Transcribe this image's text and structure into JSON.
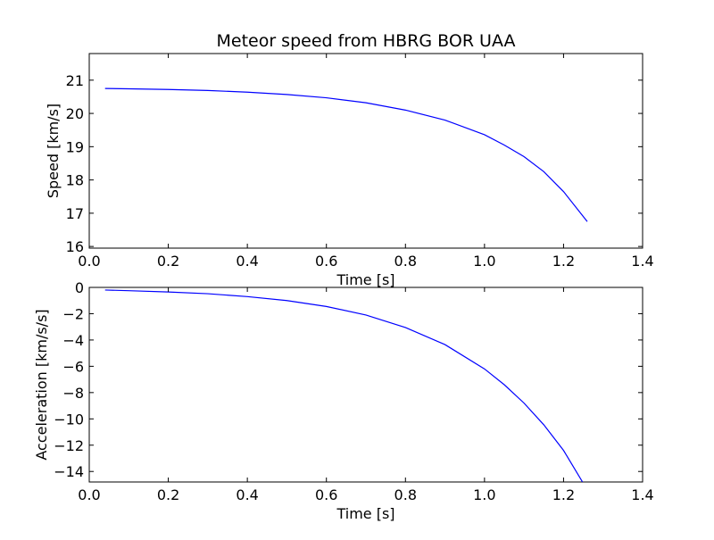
{
  "chart_data": [
    {
      "type": "line",
      "title": "Meteor speed from  HBRG BOR UAA",
      "xlabel": "Time [s]",
      "ylabel": "Speed [km/s]",
      "xlim": [
        0.0,
        1.4
      ],
      "ylim": [
        15.95,
        21.8
      ],
      "xticks": [
        0.0,
        0.2,
        0.4,
        0.6,
        0.8,
        1.0,
        1.2,
        1.4
      ],
      "xtick_labels": [
        "0.0",
        "0.2",
        "0.4",
        "0.6",
        "0.8",
        "1.0",
        "1.2",
        "1.4"
      ],
      "yticks": [
        16,
        17,
        18,
        19,
        20,
        21
      ],
      "ytick_labels": [
        "16",
        "17",
        "18",
        "19",
        "20",
        "21"
      ],
      "grid": false,
      "line_color": "#0000ff",
      "series": [
        {
          "x": [
            0.04,
            0.1,
            0.2,
            0.3,
            0.4,
            0.5,
            0.6,
            0.7,
            0.8,
            0.9,
            1.0,
            1.05,
            1.1,
            1.15,
            1.2,
            1.26
          ],
          "values": [
            20.75,
            20.74,
            20.72,
            20.69,
            20.64,
            20.57,
            20.47,
            20.32,
            20.1,
            19.8,
            19.36,
            19.05,
            18.7,
            18.25,
            17.65,
            16.75
          ]
        }
      ]
    },
    {
      "type": "line",
      "title": "",
      "xlabel": "Time [s]",
      "ylabel": "Acceleration [km/s/s]",
      "xlim": [
        0.0,
        1.4
      ],
      "ylim": [
        -14.8,
        0.0
      ],
      "xticks": [
        0.0,
        0.2,
        0.4,
        0.6,
        0.8,
        1.0,
        1.2,
        1.4
      ],
      "xtick_labels": [
        "0.0",
        "0.2",
        "0.4",
        "0.6",
        "0.8",
        "1.0",
        "1.2",
        "1.4"
      ],
      "yticks": [
        0,
        -2,
        -4,
        -6,
        -8,
        -10,
        -12,
        -14
      ],
      "ytick_labels": [
        "0",
        "−2",
        "−4",
        "−6",
        "−8",
        "−10",
        "−12",
        "−14"
      ],
      "grid": false,
      "line_color": "#0000ff",
      "series": [
        {
          "x": [
            0.04,
            0.1,
            0.2,
            0.3,
            0.4,
            0.5,
            0.6,
            0.7,
            0.8,
            0.9,
            1.0,
            1.05,
            1.1,
            1.15,
            1.2,
            1.248
          ],
          "values": [
            -0.2,
            -0.25,
            -0.35,
            -0.48,
            -0.7,
            -1.0,
            -1.45,
            -2.1,
            -3.05,
            -4.35,
            -6.2,
            -7.4,
            -8.8,
            -10.45,
            -12.4,
            -14.8
          ]
        }
      ]
    }
  ]
}
